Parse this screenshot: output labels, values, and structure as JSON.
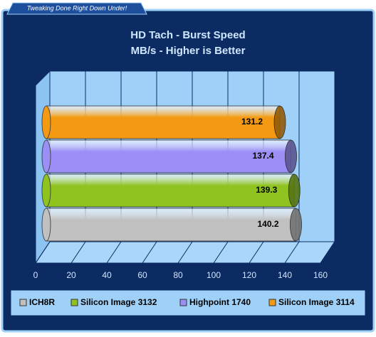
{
  "banner": "Tweaking Done Right Down Under!",
  "chart_data": {
    "type": "bar",
    "orientation": "horizontal",
    "title": "HD Tach - Burst Speed",
    "subtitle": "MB/s - Higher is Better",
    "series": [
      {
        "name": "ICH8R",
        "color": "#c0c0c0",
        "values": [
          140.2
        ]
      },
      {
        "name": "Silicon Image 3132",
        "color": "#8fc31f",
        "values": [
          139.3
        ]
      },
      {
        "name": "Highpoint 1740",
        "color": "#9b8ff5",
        "values": [
          137.4
        ]
      },
      {
        "name": "Silicon Image 3114",
        "color": "#f39a12",
        "values": [
          131.2
        ]
      }
    ],
    "xlim": [
      0,
      160
    ],
    "xticks": [
      0,
      20,
      40,
      60,
      80,
      100,
      120,
      140,
      160
    ],
    "grid": true,
    "legend": "bottom"
  }
}
